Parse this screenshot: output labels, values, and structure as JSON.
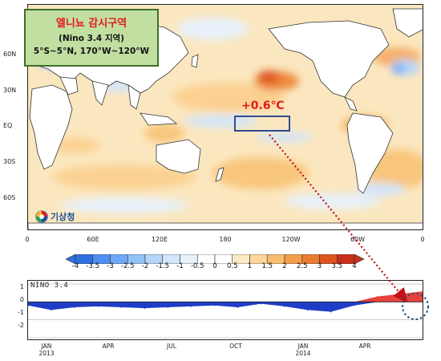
{
  "info_box": {
    "title": "엘니뇨 감시구역",
    "subtitle": "(Nino 3.4 지역)",
    "range": "5°S~5°N, 170°W~120°W"
  },
  "anomaly_label": "+0.6℃",
  "logo": {
    "text": "기상청",
    "icon": "kma-swirl-icon"
  },
  "map": {
    "lat_labels": [
      "60N",
      "30N",
      "EQ",
      "30S",
      "60S"
    ],
    "lon_labels": [
      "0",
      "60E",
      "120E",
      "180",
      "120W",
      "60W",
      "0"
    ]
  },
  "colorbar": {
    "labels": [
      "-4",
      "-3.5",
      "-3",
      "-2.5",
      "-2",
      "-1.5",
      "-1",
      "-0.5",
      "0",
      "0.5",
      "1",
      "1.5",
      "2",
      "2.5",
      "3",
      "3.5",
      "4"
    ],
    "colors": [
      "#2f6fe0",
      "#4d8ff0",
      "#6fa8f5",
      "#93c2f7",
      "#b5d6f9",
      "#d2e6fb",
      "#e7f1fb",
      "#ffffff",
      "#ffffff",
      "#fde9c3",
      "#fbd799",
      "#f8be6f",
      "#f39f4a",
      "#ec7b31",
      "#dd5421",
      "#c8301b"
    ]
  },
  "chart_data": {
    "type": "area",
    "title": "NINO 3.4",
    "ylim": [
      -2,
      1
    ],
    "yticks": [
      "1",
      "0",
      "-1",
      "-2"
    ],
    "x_month_labels": [
      "JAN",
      "APR",
      "JUL",
      "OCT",
      "JAN",
      "APR"
    ],
    "x_year_labels": [
      "2013",
      "2014"
    ],
    "x": [
      "2013-01",
      "2013-02",
      "2013-03",
      "2013-04",
      "2013-05",
      "2013-06",
      "2013-07",
      "2013-08",
      "2013-09",
      "2013-10",
      "2013-11",
      "2013-12",
      "2014-01",
      "2014-02",
      "2014-03",
      "2014-04",
      "2014-05",
      "2014-06"
    ],
    "series": [
      {
        "values": [
          -0.2,
          -0.45,
          -0.3,
          -0.25,
          -0.3,
          -0.35,
          -0.3,
          -0.25,
          -0.2,
          -0.3,
          -0.1,
          -0.25,
          -0.45,
          -0.55,
          -0.2,
          0.3,
          0.45,
          0.6
        ]
      }
    ],
    "positive_color": "#e8423c",
    "negative_color": "#1f3cc8"
  }
}
